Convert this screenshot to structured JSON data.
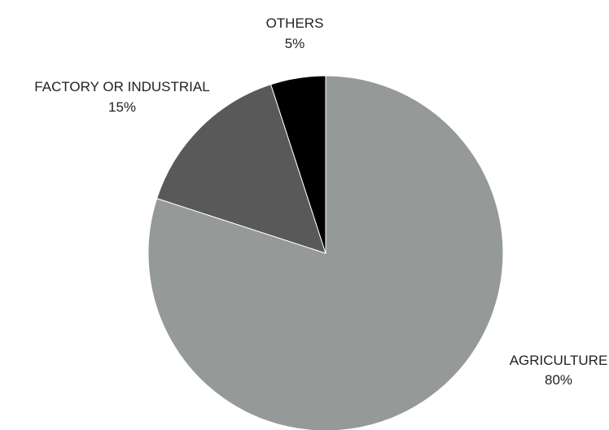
{
  "chart_data": {
    "type": "pie",
    "title": "",
    "start_angle_deg": 0,
    "direction": "clockwise",
    "slices": [
      {
        "label": "AGRICULTURE",
        "value": 80,
        "display_value": "80%",
        "color": "#959a98"
      },
      {
        "label": "FACTORY OR INDUSTRIAL",
        "value": 15,
        "display_value": "15%",
        "color": "#595959"
      },
      {
        "label": "OTHERS",
        "value": 5,
        "display_value": "5%",
        "color": "#000000"
      }
    ]
  }
}
